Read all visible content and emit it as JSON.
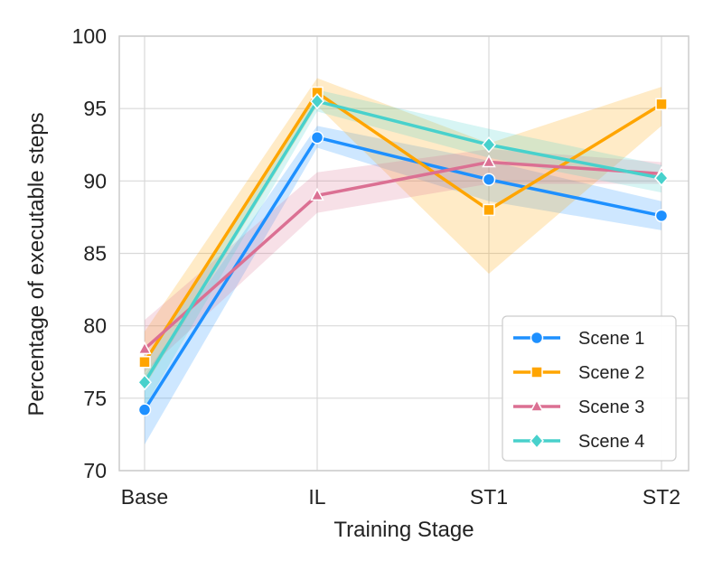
{
  "chart_data": {
    "type": "line",
    "title": "",
    "xlabel": "Training Stage",
    "ylabel": "Percentage of executable steps",
    "categories": [
      "Base",
      "IL",
      "ST1",
      "ST2"
    ],
    "ylim": [
      70,
      100
    ],
    "yticks": [
      70,
      75,
      80,
      85,
      90,
      95,
      100
    ],
    "grid": true,
    "legend_position": "lower-right",
    "series": [
      {
        "name": "Scene 1",
        "color": "#1E90FF",
        "marker": "circle",
        "values": [
          74.2,
          93.0,
          90.1,
          87.6
        ],
        "lower": [
          71.8,
          92.3,
          88.6,
          86.6
        ],
        "upper": [
          76.6,
          93.8,
          91.4,
          88.6
        ]
      },
      {
        "name": "Scene 2",
        "color": "#FFA500",
        "marker": "square",
        "values": [
          77.5,
          96.1,
          88.0,
          95.3
        ],
        "lower": [
          75.8,
          95.2,
          83.6,
          93.8
        ],
        "upper": [
          79.6,
          97.1,
          92.6,
          96.5
        ]
      },
      {
        "name": "Scene 3",
        "color": "#DB7093",
        "marker": "triangle",
        "values": [
          78.4,
          89.0,
          91.3,
          90.5
        ],
        "lower": [
          76.8,
          87.8,
          89.8,
          89.8
        ],
        "upper": [
          80.4,
          90.6,
          92.2,
          91.3
        ]
      },
      {
        "name": "Scene 4",
        "color": "#48D1CC",
        "marker": "diamond",
        "values": [
          76.1,
          95.5,
          92.5,
          90.2
        ],
        "lower": [
          74.4,
          94.8,
          91.6,
          89.2
        ],
        "upper": [
          77.6,
          96.3,
          93.6,
          91.1
        ]
      }
    ]
  }
}
